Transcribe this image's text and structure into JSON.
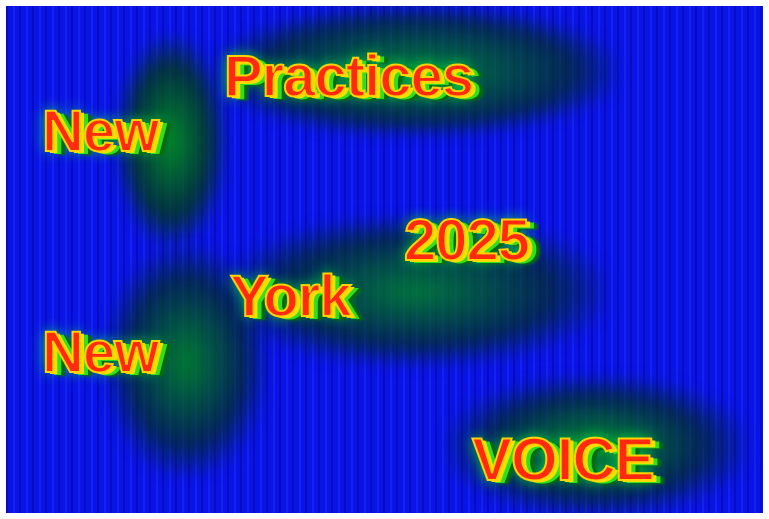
{
  "words": [
    "Practices",
    "New",
    "2025",
    "York",
    "New",
    "VOICE"
  ]
}
